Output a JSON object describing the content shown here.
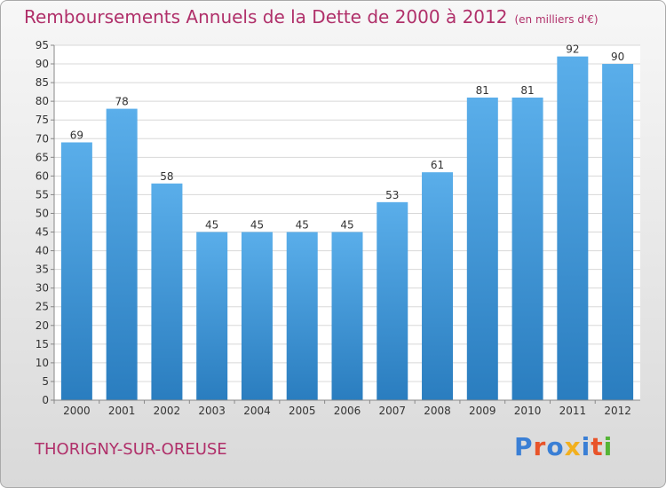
{
  "header": {
    "title": "Remboursements Annuels de la Dette de 2000 à 2012",
    "unit": "(en milliers d'€)"
  },
  "footer": {
    "city": "THORIGNY-SUR-OREUSE",
    "brand": "Proxiti"
  },
  "chart_data": {
    "type": "bar",
    "title": "Remboursements Annuels de la Dette de 2000 à 2012",
    "subtitle": "(en milliers d'€)",
    "xlabel": "",
    "ylabel": "",
    "categories": [
      "2000",
      "2001",
      "2002",
      "2003",
      "2004",
      "2005",
      "2006",
      "2007",
      "2008",
      "2009",
      "2010",
      "2011",
      "2012"
    ],
    "values": [
      69,
      78,
      58,
      45,
      45,
      45,
      45,
      53,
      61,
      81,
      81,
      92,
      90
    ],
    "ylim": [
      0,
      95
    ],
    "yticks": [
      0,
      5,
      10,
      15,
      20,
      25,
      30,
      35,
      40,
      45,
      50,
      55,
      60,
      65,
      70,
      75,
      80,
      85,
      90,
      95
    ],
    "grid": true,
    "legend": "none",
    "colors": {
      "bar_top": "#5aaeea",
      "bar_bottom": "#2a7dbf",
      "grid": "#d8d8d8",
      "title": "#b0306a"
    }
  }
}
